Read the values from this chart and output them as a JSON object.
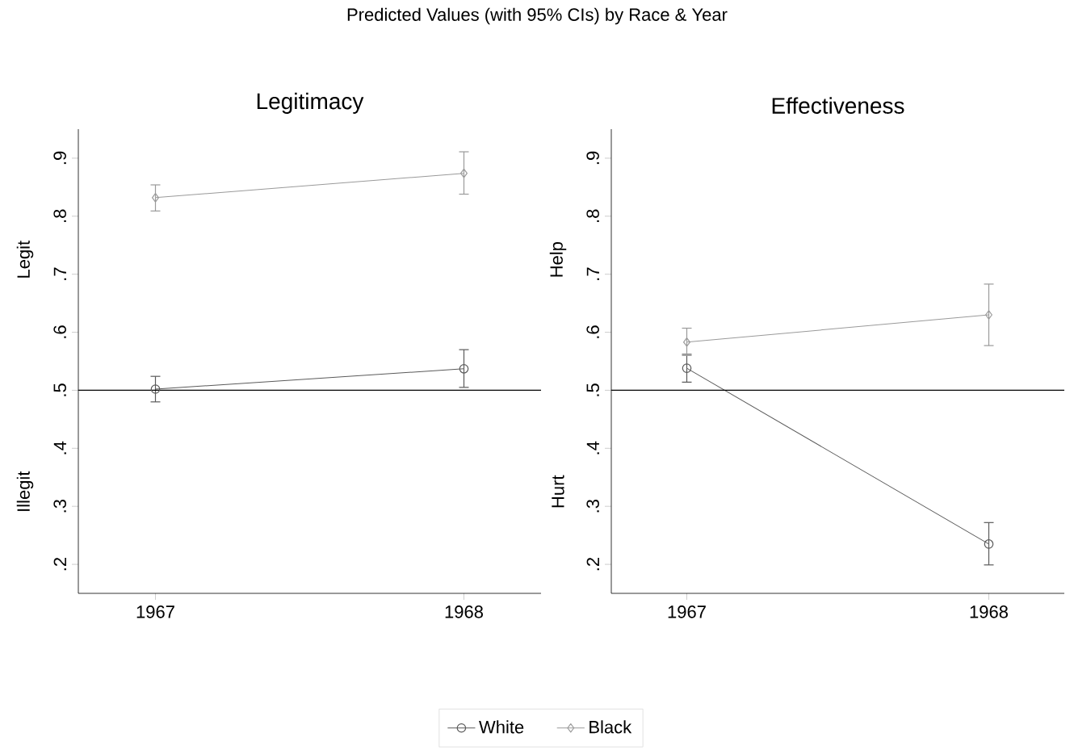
{
  "chart_data": [
    {
      "type": "line",
      "title": "Predicted Values (with 95% CIs) by Race & Year",
      "subtitle": "Legitimacy",
      "ylabel": "Legit",
      "annotations": [
        "Illegit"
      ],
      "categories": [
        "1967",
        "1968"
      ],
      "series": [
        {
          "name": "White",
          "color": "#5a5a5a",
          "marker": "circle",
          "values": [
            0.502,
            0.537
          ],
          "errors": [
            [
              0.48,
              0.524
            ],
            [
              0.505,
              0.57
            ]
          ]
        },
        {
          "name": "Black",
          "color": "#9a9a9a",
          "marker": "diamond",
          "values": [
            0.832,
            0.874
          ],
          "errors": [
            [
              0.809,
              0.854
            ],
            [
              0.838,
              0.911
            ]
          ]
        }
      ],
      "ylim": [
        0.15,
        0.95
      ],
      "yticks": [
        {
          "value": 0.2,
          "label": ".2"
        },
        {
          "value": 0.3,
          "label": ".3"
        },
        {
          "value": 0.4,
          "label": ".4"
        },
        {
          "value": 0.5,
          "label": ".5"
        },
        {
          "value": 0.6,
          "label": ".6"
        },
        {
          "value": 0.7,
          "label": ".7"
        },
        {
          "value": 0.8,
          "label": ".8"
        },
        {
          "value": 0.9,
          "label": ".9"
        }
      ],
      "ref_lines": [
        {
          "axis": "y",
          "value": 0.5,
          "color": "#000000"
        }
      ],
      "legend": "bottom"
    },
    {
      "type": "line",
      "title": "Effectiveness",
      "ylabel": "Help",
      "annotations": [
        "Hurt"
      ],
      "categories": [
        "1967",
        "1968"
      ],
      "series": [
        {
          "color": "#5a5a5a",
          "marker": "circle",
          "values": [
            0.538,
            0.235
          ],
          "errors": [
            [
              0.514,
              0.562
            ],
            [
              0.199,
              0.272
            ]
          ]
        },
        {
          "color": "#9a9a9a",
          "marker": "diamond",
          "values": [
            0.583,
            0.63
          ],
          "errors": [
            [
              0.56,
              0.607
            ],
            [
              0.577,
              0.683
            ]
          ]
        }
      ],
      "ylim": [
        0.15,
        0.95
      ],
      "yticks": [
        {
          "value": 0.2,
          "label": ".2"
        },
        {
          "value": 0.3,
          "label": ".3"
        },
        {
          "value": 0.4,
          "label": ".4"
        },
        {
          "value": 0.5,
          "label": ".5"
        },
        {
          "value": 0.6,
          "label": ".6"
        },
        {
          "value": 0.7,
          "label": ".7"
        },
        {
          "value": 0.8,
          "label": ".8"
        },
        {
          "value": 0.9,
          "label": ".9"
        }
      ],
      "ref_lines": [
        {
          "axis": "y",
          "value": 0.5,
          "color": "#000000"
        }
      ]
    }
  ]
}
